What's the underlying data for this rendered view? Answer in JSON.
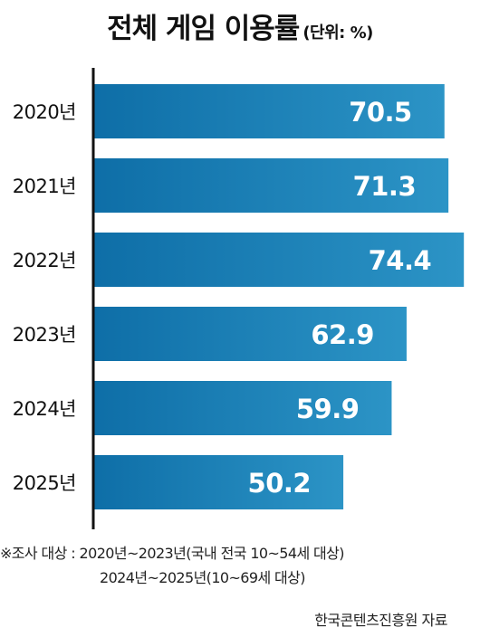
{
  "title": "전체 게임 이용률",
  "unit": "(단위: %)",
  "chart_data": {
    "type": "bar",
    "orientation": "horizontal",
    "categories": [
      "2020년",
      "2021년",
      "2022년",
      "2023년",
      "2024년",
      "2025년"
    ],
    "values": [
      70.5,
      71.3,
      74.4,
      62.9,
      59.9,
      50.2
    ],
    "value_labels": [
      "70.5",
      "71.3",
      "74.4",
      "62.9",
      "59.9",
      "50.2"
    ],
    "legend": "none",
    "grid": false
  },
  "colors": {
    "bar_start": "#0e6ea7",
    "bar_end": "#2c94c6",
    "axis": "#111111",
    "label": "#ffffff"
  },
  "notes": {
    "line1": "※조사 대상 : 2020년~2023년(국내 전국 10~54세 대상)",
    "line2": "2024년~2025년(10~69세 대상)"
  },
  "source": "한국콘텐츠진흥원 자료"
}
